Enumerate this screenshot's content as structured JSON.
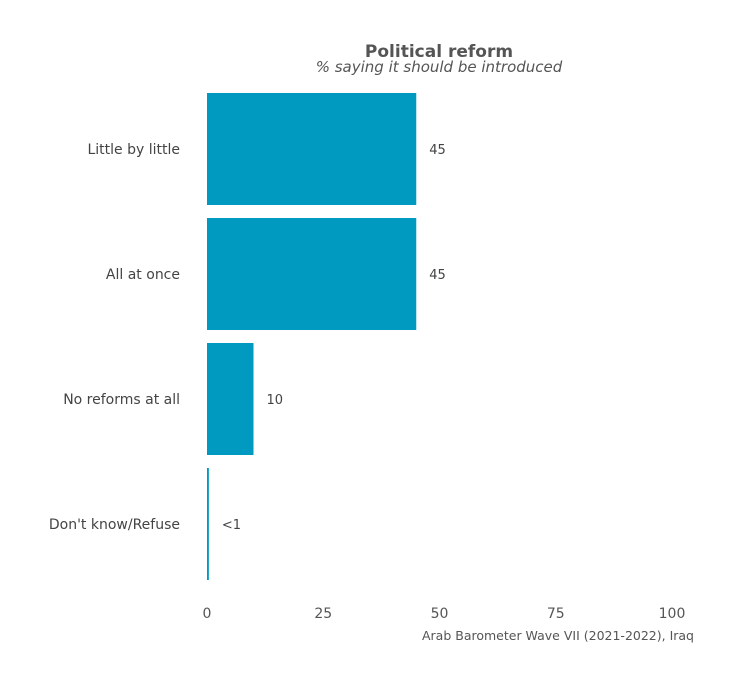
{
  "chart_data": {
    "type": "bar",
    "orientation": "horizontal",
    "title": "Political reform",
    "subtitle": "% saying it should be introduced",
    "categories": [
      "Little by little",
      "All at once",
      "No reforms at all",
      "Don't know/Refuse"
    ],
    "values": [
      45,
      45,
      10,
      0.4
    ],
    "value_labels": [
      "45",
      "45",
      "10",
      "<1"
    ],
    "xlim": [
      0,
      100
    ],
    "xticks": [
      0,
      25,
      50,
      75,
      100
    ],
    "grid": false,
    "bar_color": "#0099bf",
    "caption": "Arab Barometer Wave VII (2021-2022), Iraq"
  }
}
